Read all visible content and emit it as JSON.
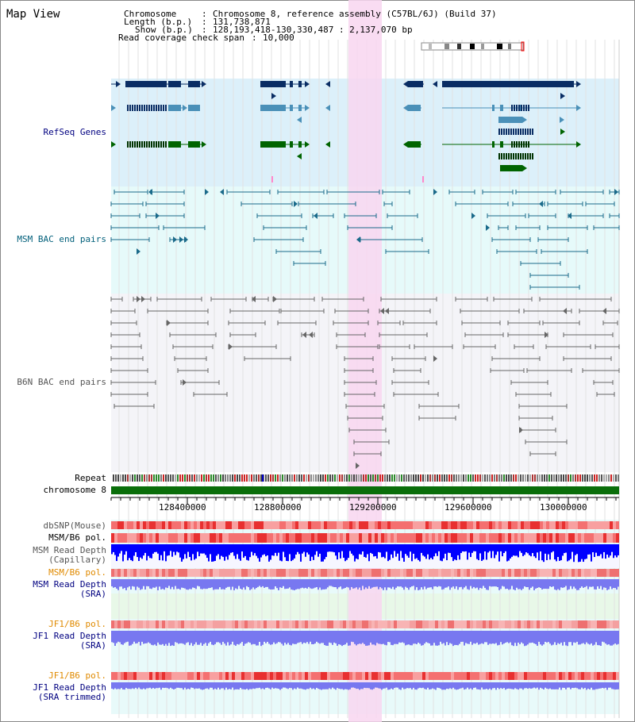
{
  "view": {
    "title": "Map View"
  },
  "header": {
    "chromosome_label": "Chromosome",
    "chromosome_value": "Chromosome 8, reference assembly (C57BL/6J) (Build 37)",
    "length_label": "Length (b.p.)",
    "length_value": "131,738,871",
    "show_label": "Show (b.p.)",
    "show_value": "128,193,418-130,330,487 : 2,137,070 bp",
    "coverage_label": "Read coverage check span",
    "coverage_value": "10,000"
  },
  "tracks": {
    "refseq": "RefSeq Genes",
    "msm_bac": "MSM BAC end pairs",
    "b6n_bac": "B6N BAC end pairs",
    "repeat": "Repeat",
    "chromosome": "chromosome 8",
    "dbsnp": "dbSNP(Mouse)",
    "msm_b6_pol_1": "MSM/B6 pol.",
    "msm_depth_cap_1": "MSM Read Depth",
    "msm_depth_cap_2": "(Capillary)",
    "msm_b6_pol_2": "MSM/B6 pol.",
    "msm_depth_sra_1": "MSM Read Depth",
    "msm_depth_sra_2": "(SRA)",
    "jf1_b6_pol_1": "JF1/B6 pol.",
    "jf1_depth_sra_1": "JF1 Read Depth",
    "jf1_depth_sra_2": "(SRA)",
    "jf1_b6_pol_2": "JF1/B6 pol.",
    "jf1_depth_trim_1": "JF1 Read Depth",
    "jf1_depth_trim_2": "(SRA trimmed)"
  },
  "axis": {
    "ticks": [
      "128400000",
      "128800000",
      "129200000",
      "129600000",
      "130000000"
    ]
  },
  "colors": {
    "refseq_bg": "#dcf0fa",
    "msm_bg": "#e6fafa",
    "b6n_bg": "#f4f4f8",
    "highlight": "#f8d6f0",
    "gene_navy": "#0a2d64",
    "gene_blue": "#4a90b8",
    "gene_green": "#006400",
    "msm_line": "#1a6a8a",
    "b6n_line": "#666666",
    "chrom_green": "#0a6e0a",
    "depth_blue": "#0000ff",
    "depth_light": "#7878f0"
  }
}
